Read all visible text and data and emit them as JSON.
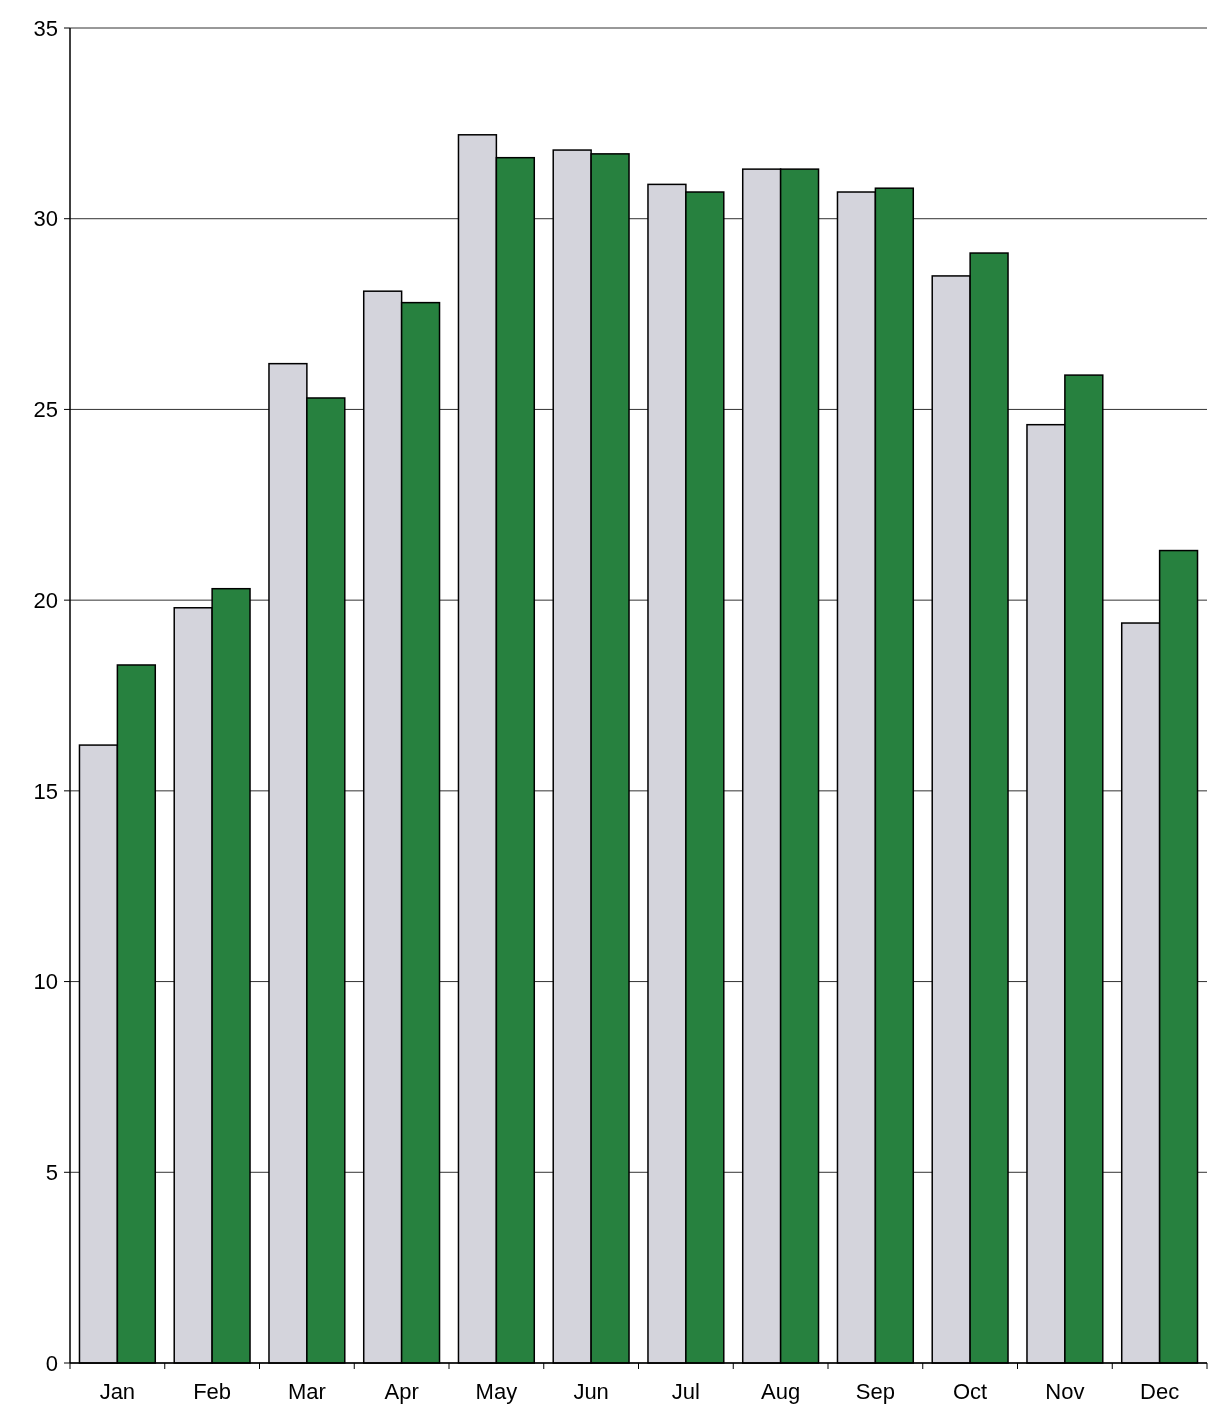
{
  "chart_data": {
    "type": "bar",
    "categories": [
      "Jan",
      "Feb",
      "Mar",
      "Apr",
      "May",
      "Jun",
      "Jul",
      "Aug",
      "Sep",
      "Oct",
      "Nov",
      "Dec"
    ],
    "series": [
      {
        "color": "#d4d4dc",
        "values": [
          16.2,
          19.8,
          26.2,
          28.1,
          32.2,
          31.8,
          30.9,
          31.3,
          30.7,
          28.5,
          24.6,
          19.4
        ]
      },
      {
        "color": "#27813f",
        "values": [
          18.3,
          20.3,
          25.3,
          27.8,
          31.6,
          31.7,
          30.7,
          31.3,
          30.8,
          29.1,
          25.9,
          21.3
        ]
      }
    ],
    "ylim": [
      0,
      35
    ],
    "yticks": [
      0,
      5,
      10,
      15,
      20,
      25,
      30,
      35
    ],
    "grid": "y"
  }
}
